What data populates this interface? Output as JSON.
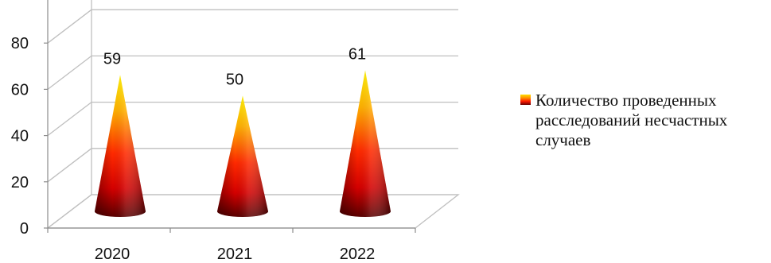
{
  "chart_data": {
    "type": "bar",
    "subtype": "3d-cone",
    "categories": [
      "2020",
      "2021",
      "2022"
    ],
    "series": [
      {
        "name": "Количество проведенных расследований несчастных случаев",
        "values": [
          59,
          50,
          61
        ]
      }
    ],
    "data_labels": [
      "59",
      "50",
      "61"
    ],
    "y_ticks": [
      "0",
      "20",
      "40",
      "60",
      "80"
    ],
    "ylim": [
      0,
      100
    ],
    "grid": true,
    "legend_position": "right",
    "colors": {
      "cone_top": "#ffe000",
      "cone_mid": "#ff1a00",
      "cone_base": "#6a0000",
      "grid": "#bfbfbf",
      "axis": "#8c8c8c"
    }
  },
  "legend": {
    "label": "Количество проведенных расследований несчастных случаев"
  }
}
